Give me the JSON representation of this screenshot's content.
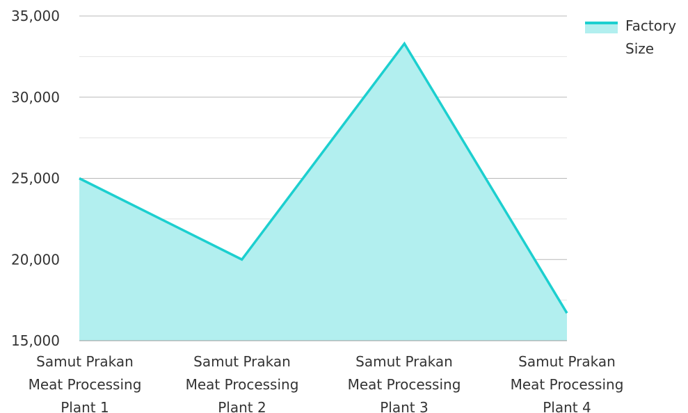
{
  "chart_data": {
    "type": "area",
    "categories": [
      [
        "Samut Prakan",
        "Meat Processing",
        "Plant 1"
      ],
      [
        "Samut Prakan",
        "Meat Processing",
        "Plant 2"
      ],
      [
        "Samut Prakan",
        "Meat Processing",
        "Plant 3"
      ],
      [
        "Samut Prakan",
        "Meat Processing",
        "Plant 4"
      ]
    ],
    "series": [
      {
        "name": "Factory Size",
        "values": [
          25000,
          20000,
          33300,
          16700
        ]
      }
    ],
    "legend": {
      "lines": [
        "Factory",
        "Size"
      ],
      "placement": "top-right"
    },
    "ylim": [
      15000,
      35000
    ],
    "yticks": [
      15000,
      20000,
      25000,
      30000,
      35000
    ],
    "ytick_labels": [
      "15,000",
      "20,000",
      "25,000",
      "30,000",
      "35,000"
    ],
    "minor_grid": [
      17500,
      22500,
      27500,
      32500
    ],
    "grid": true,
    "colors": {
      "line": "#1ccfcf",
      "fill": "#b2efef"
    }
  }
}
